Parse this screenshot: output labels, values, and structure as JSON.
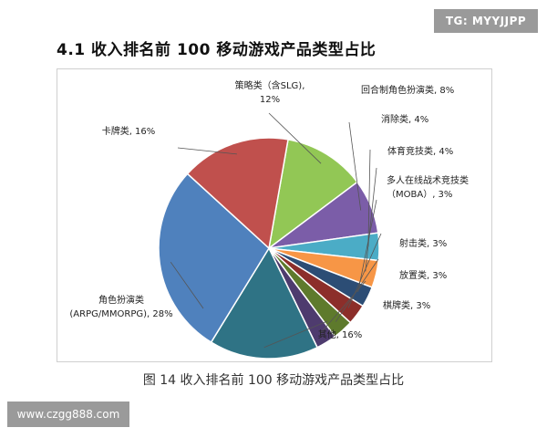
{
  "watermark_top": "TG: MYYJJPP",
  "watermark_bottom": "www.czgg888.com",
  "page_title": "4.1 收入排名前 100 移动游戏产品类型占比",
  "caption": "图 14  收入排名前 100 移动游戏产品类型占比",
  "chart_data": {
    "type": "pie",
    "title": "",
    "slices": [
      {
        "key": "celue",
        "lines": [
          "策略类（含SLG),",
          "12%"
        ],
        "value": 12,
        "color": "#92C755"
      },
      {
        "key": "huihe",
        "lines": [
          "回合制角色扮演类, 8%"
        ],
        "value": 8,
        "color": "#7B5DA8"
      },
      {
        "key": "xiaochu",
        "lines": [
          "消除类, 4%"
        ],
        "value": 4,
        "color": "#4BACC6"
      },
      {
        "key": "tiyu",
        "lines": [
          "体育竞技类, 4%"
        ],
        "value": 4,
        "color": "#F79646"
      },
      {
        "key": "moba",
        "lines": [
          "多人在线战术竞技类",
          "（MOBA）, 3%"
        ],
        "value": 3,
        "color": "#2C4D75"
      },
      {
        "key": "sheji",
        "lines": [
          "射击类, 3%"
        ],
        "value": 3,
        "color": "#8C2E2A"
      },
      {
        "key": "fangzhi",
        "lines": [
          "放置类, 3%"
        ],
        "value": 3,
        "color": "#5E7A2C"
      },
      {
        "key": "qipai",
        "lines": [
          "棋牌类, 3%"
        ],
        "value": 3,
        "color": "#4E3B6E"
      },
      {
        "key": "qita",
        "lines": [
          "其他, 16%"
        ],
        "value": 16,
        "color": "#2F7385"
      },
      {
        "key": "jiaose",
        "lines": [
          "角色扮演类",
          "(ARPG/MMORPG), 28%"
        ],
        "value": 28,
        "color": "#4F81BD"
      },
      {
        "key": "kapai",
        "lines": [
          "卡牌类, 16%"
        ],
        "value": 16,
        "color": "#C0504D"
      }
    ]
  }
}
